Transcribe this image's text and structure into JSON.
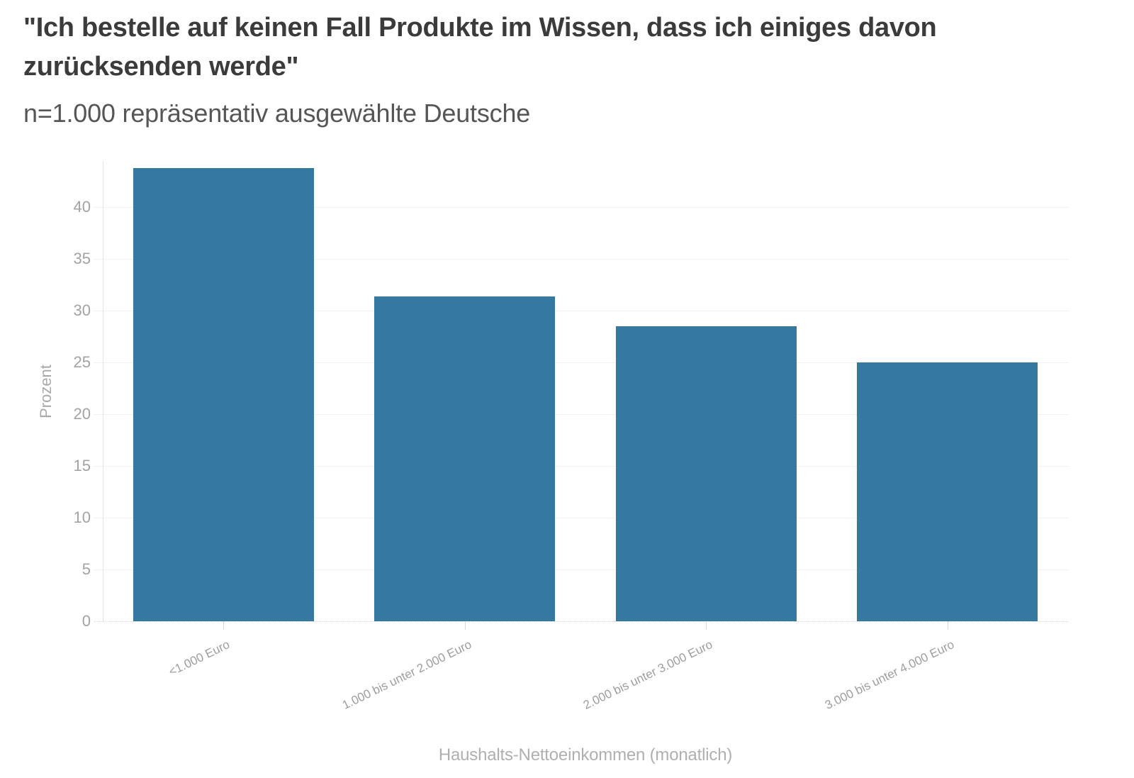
{
  "page": {
    "background": "#ffffff"
  },
  "chart_data": {
    "type": "bar",
    "title": "\"Ich bestelle auf keinen Fall Produkte im Wissen, dass ich einiges davon zurücksenden werde\"",
    "subtitle": "n=1.000 repräsentativ ausgewählte Deutsche",
    "categories": [
      "<1.000 Euro",
      "1.000 bis unter 2.000 Euro",
      "2.000 bis unter 3.000 Euro",
      "3.000 bis unter 4.000 Euro"
    ],
    "values": [
      43.8,
      31.4,
      28.5,
      25.0
    ],
    "xlabel": "Haushalts-Nettoeinkommen (monatlich)",
    "ylabel": "Prozent",
    "ylim": [
      0,
      44.4
    ],
    "yticks": [
      0,
      5,
      10,
      15,
      20,
      25,
      30,
      35,
      40
    ],
    "grid": true,
    "legend": "none",
    "colors": {
      "bar": "#3578a0",
      "title_text": "#3b3b3b",
      "subtitle_text": "#565656",
      "tick_label": "#a3a3a3",
      "axis_title": "#a9a9a9",
      "gridline": "#e7e7e7",
      "axis_line": "#e3e3e3"
    }
  }
}
